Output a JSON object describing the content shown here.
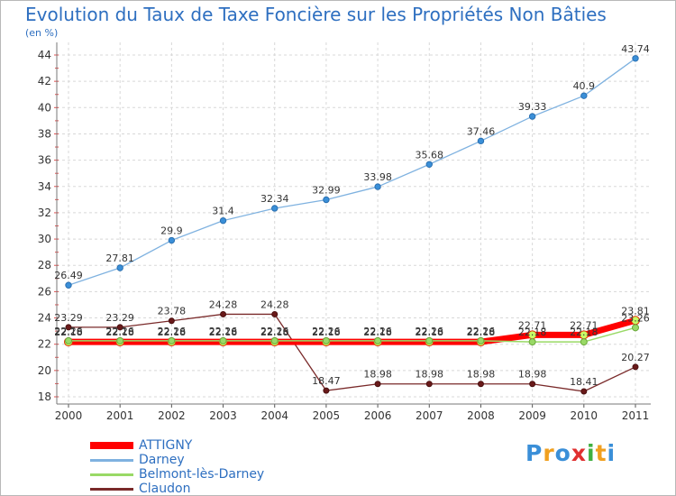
{
  "chart_data": {
    "type": "line",
    "title": "Evolution du Taux de Taxe Foncière sur les Propriétés Non Bâties",
    "ylabel": "(en %)",
    "xlabel": "",
    "x": [
      "2000",
      "2001",
      "2002",
      "2003",
      "2004",
      "2005",
      "2006",
      "2007",
      "2008",
      "2009",
      "2010",
      "2011"
    ],
    "ylim": [
      18,
      44
    ],
    "yticks": [
      "18",
      "20",
      "22",
      "24",
      "26",
      "28",
      "30",
      "32",
      "34",
      "36",
      "38",
      "40",
      "42",
      "44"
    ],
    "grid": true,
    "legend": "bottom-left",
    "series": [
      {
        "name": "ATTIGNY",
        "color": "#ff0000",
        "values": [
          22.18,
          22.18,
          22.18,
          22.18,
          22.18,
          22.18,
          22.18,
          22.18,
          22.18,
          22.71,
          22.71,
          23.81
        ],
        "labels": [
          "22.18",
          "22.18",
          "22.18",
          "22.18",
          "22.18",
          "22.18",
          "22.18",
          "22.18",
          "22.18",
          "22.71",
          "22.71",
          "23.81"
        ]
      },
      {
        "name": "Darney",
        "color": "#7fb2e0",
        "values": [
          26.49,
          27.81,
          29.9,
          31.4,
          32.34,
          32.99,
          33.98,
          35.68,
          37.46,
          39.33,
          40.9,
          43.74
        ],
        "labels": [
          "26.49",
          "27.81",
          "29.9",
          "31.4",
          "32.34",
          "32.99",
          "33.98",
          "35.68",
          "37.46",
          "39.33",
          "40.9",
          "43.74"
        ]
      },
      {
        "name": "Belmont-lès-Darney",
        "color": "#99d966",
        "values": [
          22.26,
          22.26,
          22.26,
          22.26,
          22.26,
          22.26,
          22.26,
          22.26,
          22.26,
          22.18,
          22.18,
          23.26
        ],
        "labels": [
          "22.26",
          "22.26",
          "22.26",
          "22.26",
          "22.26",
          "22.26",
          "22.26",
          "22.26",
          "22.26",
          "22.18",
          "22.18",
          "23.26"
        ]
      },
      {
        "name": "Claudon",
        "color": "#7a2a2a",
        "values": [
          23.29,
          23.29,
          23.78,
          24.28,
          24.28,
          18.47,
          18.98,
          18.98,
          18.98,
          18.98,
          18.41,
          20.27
        ],
        "labels": [
          "23.29",
          "23.29",
          "23.78",
          "24.28",
          "24.28",
          "18.47",
          "18.98",
          "18.98",
          "18.98",
          "18.98",
          "18.41",
          "20.27"
        ]
      }
    ]
  },
  "brand": {
    "letters": [
      "P",
      "r",
      "o",
      "x",
      "i",
      "t",
      "i"
    ],
    "colors": [
      "#3a8fd8",
      "#f0a020",
      "#3a8fd8",
      "#e03030",
      "#40b040",
      "#f0a020",
      "#3a8fd8"
    ]
  }
}
